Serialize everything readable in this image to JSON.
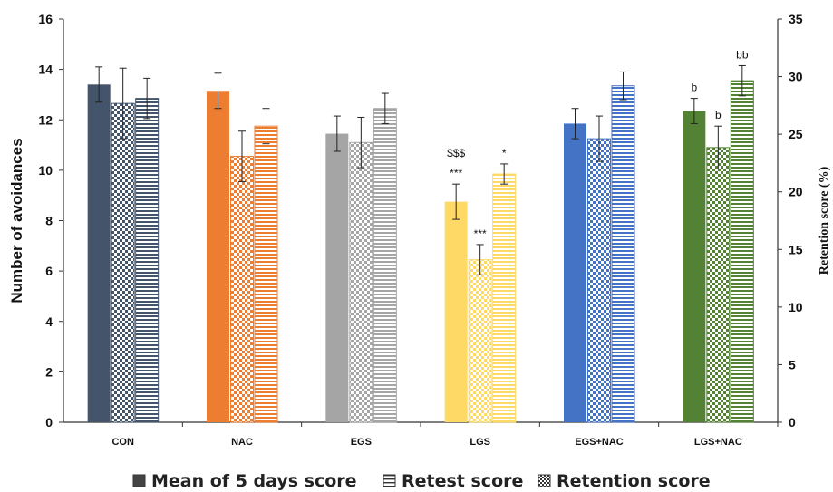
{
  "chart_data": {
    "type": "bar",
    "categories": [
      "CON",
      "NAC",
      "EGS",
      "LGS",
      "EGS+NAC",
      "LGS+NAC"
    ],
    "ylabel": "Number of avoidances",
    "y2label": "Retention score (%)",
    "ylim": [
      0,
      16
    ],
    "y_ticks": [
      0,
      2,
      4,
      6,
      8,
      10,
      12,
      14,
      16
    ],
    "y2lim": [
      0,
      35
    ],
    "y2_ticks": [
      0,
      5,
      10,
      15,
      20,
      25,
      30,
      35
    ],
    "series": [
      {
        "name": "Mean of 5 days score",
        "axis": "left",
        "pattern": "solid",
        "values": [
          13.4,
          13.15,
          11.45,
          8.75,
          11.85,
          12.35
        ],
        "errors": [
          0.7,
          0.7,
          0.7,
          0.7,
          0.6,
          0.5
        ]
      },
      {
        "name": "Retention score",
        "axis": "left",
        "pattern": "checker",
        "values": [
          12.65,
          10.55,
          11.1,
          6.45,
          11.25,
          10.9
        ],
        "errors": [
          1.4,
          1.0,
          1.0,
          0.6,
          0.9,
          0.85
        ]
      },
      {
        "name": "Retest score",
        "axis": "left",
        "pattern": "hstripe",
        "values": [
          12.85,
          11.75,
          12.45,
          9.85,
          13.35,
          13.55
        ],
        "errors": [
          0.8,
          0.7,
          0.6,
          0.4,
          0.55,
          0.6
        ]
      }
    ],
    "group_colors": [
      "#44546a",
      "#ed7d31",
      "#a5a5a5",
      "#ffd966",
      "#4472c4",
      "#548235"
    ],
    "annotations": [
      {
        "category": "LGS",
        "series": 0,
        "text": "***"
      },
      {
        "category": "LGS",
        "series": 0,
        "text": "$$$"
      },
      {
        "category": "LGS",
        "series": 1,
        "text": "***"
      },
      {
        "category": "LGS",
        "series": 2,
        "text": "*"
      },
      {
        "category": "LGS+NAC",
        "series": 0,
        "text": "b"
      },
      {
        "category": "LGS+NAC",
        "series": 1,
        "text": "b"
      },
      {
        "category": "LGS+NAC",
        "series": 2,
        "text": "bb"
      }
    ],
    "legend": {
      "placement": "bottom",
      "items": [
        {
          "label": "Mean of 5 days score",
          "glyph": "■"
        },
        {
          "label": "Retest score",
          "glyph": "⊟"
        },
        {
          "label": "Retention score",
          "glyph": "⊠"
        }
      ]
    },
    "grid": false
  }
}
